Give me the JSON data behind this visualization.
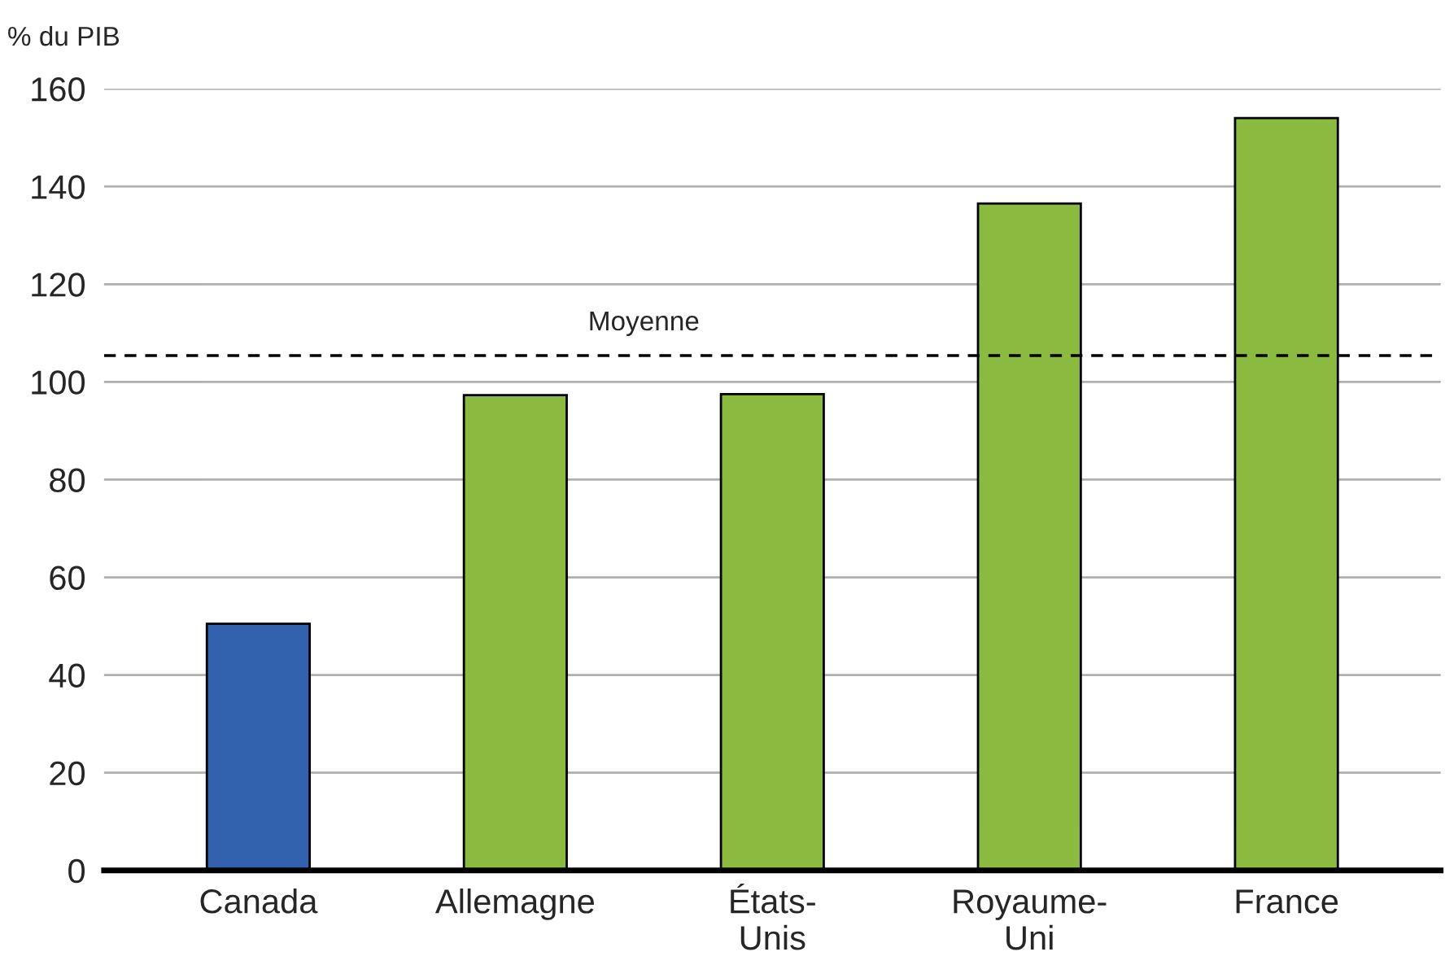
{
  "chart_data": {
    "type": "bar",
    "ylabel": "% du PIB",
    "categories": [
      "Canada",
      "Allemagne",
      "États-\nUnis",
      "Royaume-\nUni",
      "France"
    ],
    "values": [
      50.5,
      97.3,
      97.5,
      136.5,
      154.0
    ],
    "colors": [
      "#3262ae",
      "#8aba40",
      "#8aba40",
      "#8aba40",
      "#8aba40"
    ],
    "ylim": [
      0,
      160
    ],
    "yticks": [
      0,
      20,
      40,
      60,
      80,
      100,
      120,
      140,
      160
    ],
    "grid": "y",
    "ref_lines": [
      {
        "axis": "y",
        "value": 105.4,
        "label": "Moyenne",
        "color": "#000000",
        "line_style": "dashed"
      }
    ]
  }
}
